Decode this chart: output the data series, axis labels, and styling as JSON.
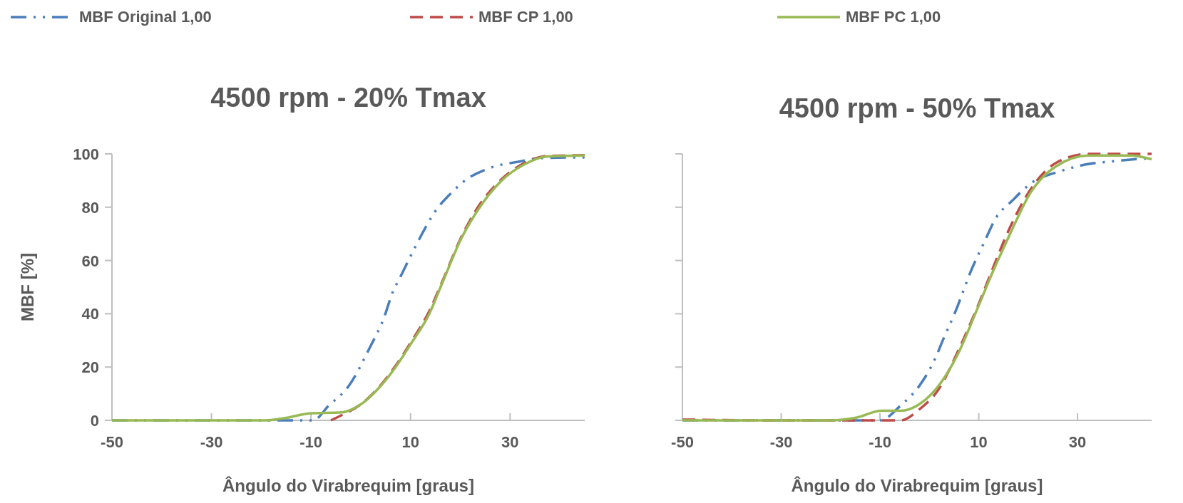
{
  "chart_data": [
    {
      "type": "line",
      "title": "4500 rpm - 20% Tmax",
      "xlabel": "Ângulo do Virabrequim [graus]",
      "ylabel": "MBF [%]",
      "xlim": [
        -50,
        45
      ],
      "xticks": [
        -50,
        -30,
        -10,
        10,
        30
      ],
      "ylim": [
        0,
        100
      ],
      "yticks": [
        0,
        20,
        40,
        60,
        80,
        100
      ],
      "grid": false,
      "legend": "top",
      "marker": "none",
      "series": [
        {
          "name": "MBF Original 1,00",
          "color": "#4a7ebb",
          "line_style": "dashdot",
          "x": [
            -50,
            -30,
            -9.6,
            -6.4,
            -2.5,
            2,
            4.5,
            6.5,
            8,
            10.3,
            13.2,
            14.8,
            18,
            20.6,
            26.4,
            31.5,
            37,
            45
          ],
          "values": [
            0,
            0,
            0,
            5.6,
            12.7,
            28,
            37.7,
            48.5,
            54,
            62.7,
            73,
            78,
            85,
            89.5,
            95,
            97,
            98.5,
            98.7
          ]
        },
        {
          "name": "MBF CP 1,00",
          "color": "#be4b48",
          "line_style": "dashed",
          "x": [
            -6,
            -3.8,
            0,
            3.9,
            7,
            10.3,
            13.5,
            16.7,
            20,
            23.2,
            28.3,
            32.8,
            37.3,
            45
          ],
          "values": [
            0,
            2,
            6,
            13,
            20.5,
            30,
            40,
            53.5,
            68,
            79,
            90.5,
            96.5,
            99.2,
            99.5
          ]
        },
        {
          "name": "MBF PC 1,00",
          "color": "#98b954",
          "line_style": "solid",
          "x": [
            -50,
            -30,
            -19.3,
            -15.4,
            -10.3,
            -3.8,
            0,
            3.9,
            7,
            10.3,
            13.5,
            16.7,
            20,
            23.2,
            28.3,
            32.8,
            37.3,
            45
          ],
          "values": [
            0,
            0,
            0,
            0.8,
            2.6,
            3,
            6,
            12.7,
            20,
            29.4,
            39,
            53,
            67.5,
            78,
            90,
            96,
            99,
            99.4
          ]
        }
      ]
    },
    {
      "type": "line",
      "title": "4500 rpm - 50% Tmax",
      "xlabel": "Ângulo do Virabrequim [graus]",
      "xlim": [
        -50,
        45
      ],
      "xticks": [
        -50,
        -30,
        -10,
        10,
        30
      ],
      "ylim": [
        0,
        100
      ],
      "yticks": [
        {
          "value": 0,
          "label": null
        },
        {
          "value": 20,
          "label": null
        },
        {
          "value": 40,
          "label": null
        },
        {
          "value": 60,
          "label": null
        },
        {
          "value": 80,
          "label": null
        },
        {
          "value": 100,
          "label": null
        }
      ],
      "tick_labels": "x",
      "grid": false,
      "marker": "none",
      "series": [
        {
          "color": "#4a7ebb",
          "line_style": "dashdot",
          "x": [
            -50,
            -30,
            -10,
            -5.8,
            -1.9,
            1.3,
            2.6,
            5.2,
            8.7,
            11,
            13.5,
            16.8,
            20.6,
            26.5,
            30.3,
            38,
            45
          ],
          "values": [
            0,
            0,
            0,
            5.6,
            13.3,
            23.7,
            29.5,
            40.5,
            57.3,
            66.4,
            76,
            82.5,
            89,
            93.5,
            95.5,
            97.4,
            98.4
          ]
        },
        {
          "color": "#be4b48",
          "line_style": "dashed",
          "x": [
            -50,
            -30,
            -5.8,
            -1.9,
            2,
            5.8,
            9.7,
            12.9,
            16.1,
            20.6,
            25.8,
            32.3,
            40.6,
            45
          ],
          "values": [
            0.3,
            0,
            0,
            4.3,
            12,
            26,
            42.4,
            57.3,
            71.5,
            87,
            96.8,
            100,
            100,
            100
          ]
        },
        {
          "color": "#98b954",
          "line_style": "solid",
          "x": [
            -50,
            -30,
            -20,
            -14.8,
            -9.7,
            -5.8,
            -1.9,
            2,
            5.8,
            9.7,
            12.9,
            16.1,
            20.6,
            25.8,
            32.3,
            40.6,
            45
          ],
          "values": [
            0,
            0,
            0,
            1,
            3.6,
            3.6,
            6.2,
            13.3,
            25,
            41.8,
            56,
            69,
            85.8,
            95.5,
            99.4,
            99.4,
            98
          ]
        }
      ]
    }
  ]
}
